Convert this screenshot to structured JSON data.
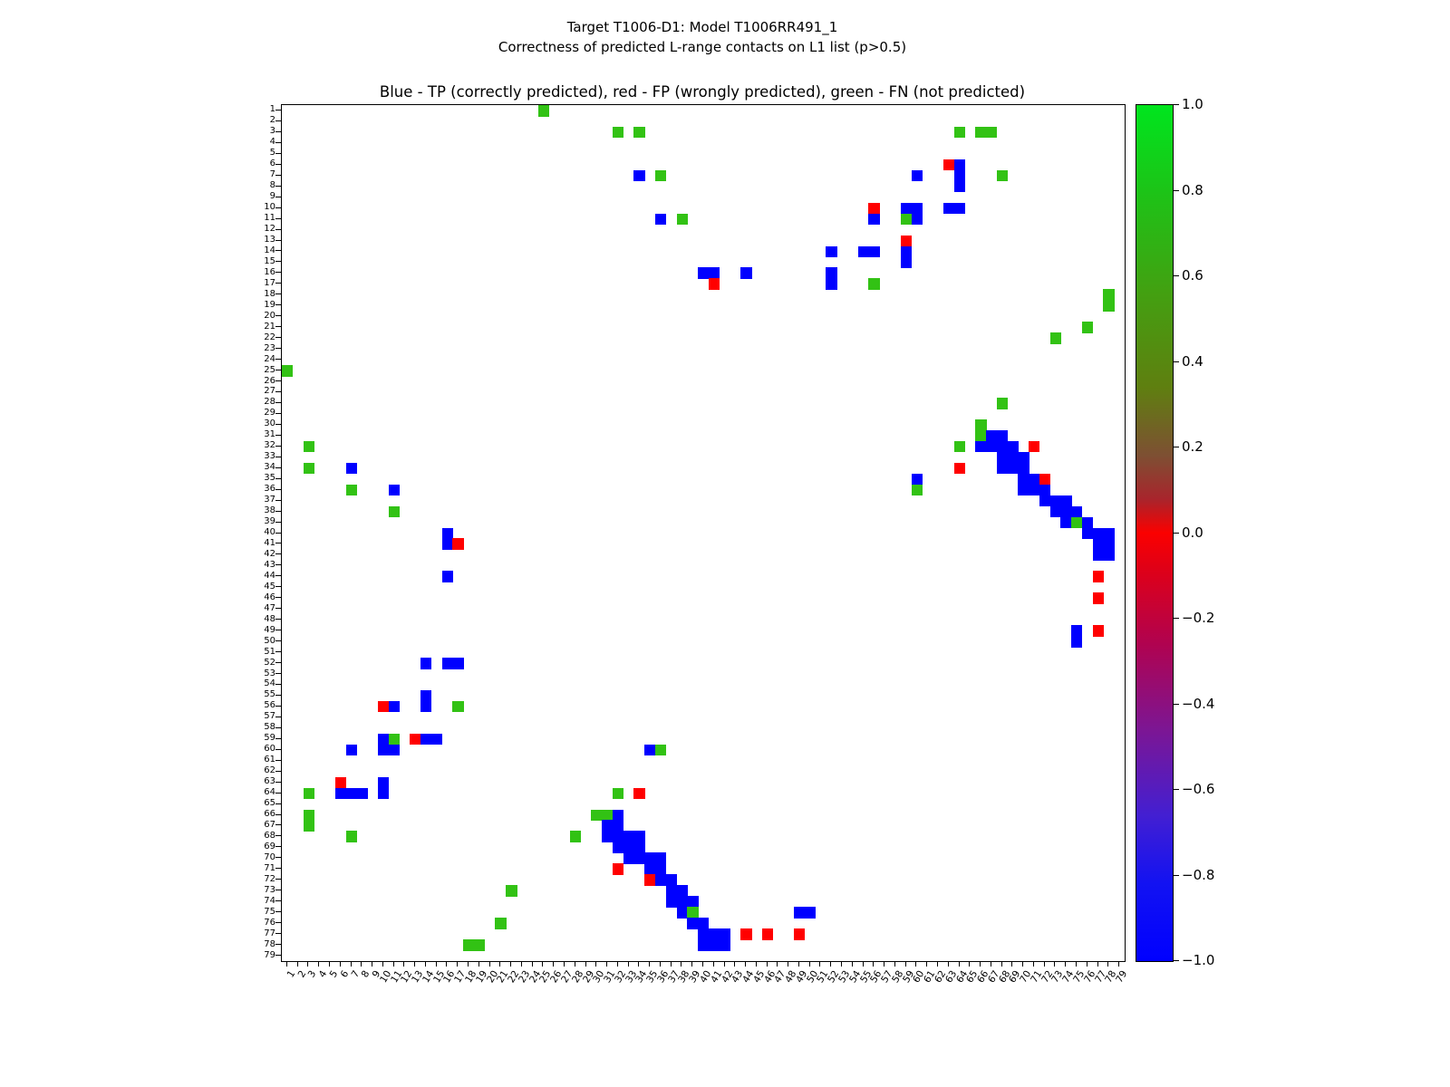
{
  "figure": {
    "title_line1": "Target T1006-D1: Model T1006RR491_1",
    "title_line2": "Correctness of predicted L-range contacts on L1 list (p>0.5)",
    "axes_title": "Blue - TP (correctly predicted), red - FP (wrongly predicted), green - FN (not predicted)"
  },
  "chart_data": {
    "type": "heatmap",
    "title": "Blue - TP (correctly predicted), red - FP (wrongly predicted), green - FN (not predicted)",
    "xlabel": "",
    "ylabel": "",
    "x_range": [
      1,
      79
    ],
    "y_range": [
      1,
      79
    ],
    "axis_ticks": {
      "x": {
        "from": 1,
        "to": 79,
        "step": 1
      },
      "y": {
        "from": 1,
        "to": 79,
        "step": 1
      }
    },
    "grid": false,
    "symmetric": true,
    "classes": {
      "TP": {
        "meaning": "correctly predicted",
        "color": "#0000ff",
        "colorbar_value": -1.0
      },
      "FP": {
        "meaning": "wrongly predicted",
        "color": "#ff0000",
        "colorbar_value": 0.0
      },
      "FN": {
        "meaning": "not predicted",
        "color": "#32c214",
        "colorbar_value": 0.8
      }
    },
    "colors": {
      "TP": "#0000ff",
      "FP": "#ff0000",
      "FN": "#32c214"
    },
    "cells": [
      [
        1,
        25,
        "FN"
      ],
      [
        3,
        32,
        "FN"
      ],
      [
        3,
        34,
        "FN"
      ],
      [
        3,
        64,
        "FN"
      ],
      [
        3,
        66,
        "FN"
      ],
      [
        3,
        67,
        "FN"
      ],
      [
        6,
        63,
        "FP"
      ],
      [
        6,
        64,
        "TP"
      ],
      [
        7,
        34,
        "TP"
      ],
      [
        7,
        36,
        "FN"
      ],
      [
        7,
        60,
        "TP"
      ],
      [
        7,
        64,
        "TP"
      ],
      [
        7,
        68,
        "FN"
      ],
      [
        8,
        64,
        "TP"
      ],
      [
        10,
        56,
        "FP"
      ],
      [
        10,
        59,
        "TP"
      ],
      [
        10,
        60,
        "TP"
      ],
      [
        10,
        63,
        "TP"
      ],
      [
        10,
        64,
        "TP"
      ],
      [
        11,
        36,
        "TP"
      ],
      [
        11,
        38,
        "FN"
      ],
      [
        11,
        56,
        "TP"
      ],
      [
        11,
        59,
        "FN"
      ],
      [
        11,
        60,
        "TP"
      ],
      [
        13,
        59,
        "FP"
      ],
      [
        14,
        52,
        "TP"
      ],
      [
        14,
        55,
        "TP"
      ],
      [
        14,
        56,
        "TP"
      ],
      [
        14,
        59,
        "TP"
      ],
      [
        15,
        59,
        "TP"
      ],
      [
        16,
        40,
        "TP"
      ],
      [
        16,
        41,
        "TP"
      ],
      [
        16,
        44,
        "TP"
      ],
      [
        16,
        52,
        "TP"
      ],
      [
        17,
        41,
        "FP"
      ],
      [
        17,
        52,
        "TP"
      ],
      [
        17,
        56,
        "FN"
      ],
      [
        18,
        78,
        "FN"
      ],
      [
        19,
        78,
        "FN"
      ],
      [
        21,
        76,
        "FN"
      ],
      [
        22,
        73,
        "FN"
      ],
      [
        28,
        68,
        "FN"
      ],
      [
        30,
        66,
        "FN"
      ],
      [
        31,
        66,
        "FN"
      ],
      [
        31,
        67,
        "TP"
      ],
      [
        31,
        68,
        "TP"
      ],
      [
        32,
        64,
        "FN"
      ],
      [
        32,
        66,
        "TP"
      ],
      [
        32,
        67,
        "TP"
      ],
      [
        32,
        68,
        "TP"
      ],
      [
        32,
        69,
        "TP"
      ],
      [
        32,
        71,
        "FP"
      ],
      [
        33,
        68,
        "TP"
      ],
      [
        33,
        69,
        "TP"
      ],
      [
        33,
        70,
        "TP"
      ],
      [
        34,
        64,
        "FP"
      ],
      [
        34,
        68,
        "TP"
      ],
      [
        34,
        69,
        "TP"
      ],
      [
        34,
        70,
        "TP"
      ],
      [
        35,
        60,
        "TP"
      ],
      [
        35,
        70,
        "TP"
      ],
      [
        35,
        71,
        "TP"
      ],
      [
        35,
        72,
        "FP"
      ],
      [
        36,
        60,
        "FN"
      ],
      [
        36,
        70,
        "TP"
      ],
      [
        36,
        71,
        "TP"
      ],
      [
        36,
        72,
        "TP"
      ],
      [
        37,
        72,
        "TP"
      ],
      [
        37,
        73,
        "TP"
      ],
      [
        37,
        74,
        "TP"
      ],
      [
        38,
        73,
        "TP"
      ],
      [
        38,
        74,
        "TP"
      ],
      [
        38,
        75,
        "TP"
      ],
      [
        39,
        74,
        "TP"
      ],
      [
        39,
        75,
        "FN"
      ],
      [
        39,
        76,
        "TP"
      ],
      [
        40,
        76,
        "TP"
      ],
      [
        40,
        77,
        "TP"
      ],
      [
        40,
        78,
        "TP"
      ],
      [
        41,
        77,
        "TP"
      ],
      [
        41,
        78,
        "TP"
      ],
      [
        42,
        77,
        "TP"
      ],
      [
        42,
        78,
        "TP"
      ],
      [
        44,
        77,
        "FP"
      ],
      [
        46,
        77,
        "FP"
      ],
      [
        49,
        75,
        "TP"
      ],
      [
        49,
        77,
        "FP"
      ],
      [
        50,
        75,
        "TP"
      ]
    ],
    "colorbar": {
      "min": -1.0,
      "max": 1.0,
      "tick_labels": [
        "1.0",
        "0.8",
        "0.6",
        "0.4",
        "0.2",
        "0.0",
        "−0.2",
        "−0.4",
        "−0.6",
        "−0.8",
        "−1.0"
      ],
      "gradient_stops": [
        {
          "o": 0,
          "c": "#00e51e"
        },
        {
          "o": 10,
          "c": "#1cc417"
        },
        {
          "o": 22,
          "c": "#43a011"
        },
        {
          "o": 33,
          "c": "#5f7f10"
        },
        {
          "o": 41,
          "c": "#7e4f33"
        },
        {
          "o": 46,
          "c": "#a8252c"
        },
        {
          "o": 50,
          "c": "#fb0000"
        },
        {
          "o": 54,
          "c": "#e00016"
        },
        {
          "o": 63,
          "c": "#b00350"
        },
        {
          "o": 73,
          "c": "#7c1694"
        },
        {
          "o": 83,
          "c": "#431fd2"
        },
        {
          "o": 91,
          "c": "#1212f2"
        },
        {
          "o": 100,
          "c": "#0000ff"
        }
      ]
    }
  }
}
